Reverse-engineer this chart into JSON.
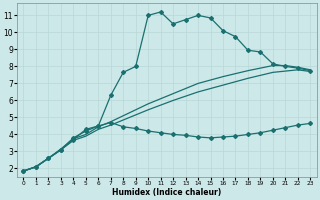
{
  "xlabel": "Humidex (Indice chaleur)",
  "xlim": [
    -0.5,
    23.5
  ],
  "ylim": [
    1.5,
    11.7
  ],
  "xticks": [
    0,
    1,
    2,
    3,
    4,
    5,
    6,
    7,
    8,
    9,
    10,
    11,
    12,
    13,
    14,
    15,
    16,
    17,
    18,
    19,
    20,
    21,
    22,
    23
  ],
  "yticks": [
    2,
    3,
    4,
    5,
    6,
    7,
    8,
    9,
    10,
    11
  ],
  "bg_color": "#cce8e8",
  "grid_color": "#b8d8d8",
  "line_color": "#1a7070",
  "line1_x": [
    0,
    1,
    2,
    3,
    4,
    5,
    6,
    7,
    8,
    9,
    10,
    11,
    12,
    13,
    14,
    15,
    16,
    17,
    18,
    19,
    20,
    21,
    22,
    23
  ],
  "line1_y": [
    1.85,
    2.1,
    2.6,
    3.1,
    3.8,
    4.2,
    4.5,
    6.3,
    7.65,
    8.0,
    11.0,
    11.2,
    10.5,
    10.75,
    11.0,
    10.85,
    10.1,
    9.75,
    8.95,
    8.85,
    8.15,
    8.0,
    7.9,
    7.75
  ],
  "line1_marker": true,
  "line2_x": [
    0,
    1,
    2,
    3,
    4,
    5,
    6,
    7,
    8,
    9,
    10,
    12,
    14,
    16,
    18,
    20,
    21,
    22,
    23
  ],
  "line2_y": [
    1.85,
    2.1,
    2.6,
    3.15,
    3.75,
    4.0,
    4.45,
    4.75,
    5.1,
    5.45,
    5.8,
    6.4,
    7.0,
    7.4,
    7.75,
    8.05,
    8.05,
    7.95,
    7.8
  ],
  "line2_marker": false,
  "line3_x": [
    0,
    1,
    2,
    3,
    4,
    5,
    6,
    7,
    8,
    9,
    10,
    12,
    14,
    16,
    18,
    20,
    22,
    23
  ],
  "line3_y": [
    1.85,
    2.1,
    2.6,
    3.1,
    3.65,
    3.9,
    4.3,
    4.55,
    4.85,
    5.15,
    5.45,
    6.0,
    6.5,
    6.9,
    7.3,
    7.65,
    7.8,
    7.7
  ],
  "line3_marker": false,
  "line4_x": [
    0,
    1,
    2,
    3,
    4,
    5,
    6,
    7,
    8,
    9,
    10,
    11,
    12,
    13,
    14,
    15,
    16,
    17,
    18,
    19,
    20,
    21,
    22,
    23
  ],
  "line4_y": [
    1.85,
    2.1,
    2.6,
    3.1,
    3.7,
    4.3,
    4.5,
    4.7,
    4.45,
    4.35,
    4.2,
    4.1,
    4.0,
    3.95,
    3.85,
    3.8,
    3.85,
    3.9,
    4.0,
    4.1,
    4.25,
    4.4,
    4.55,
    4.65
  ],
  "line4_marker": true
}
